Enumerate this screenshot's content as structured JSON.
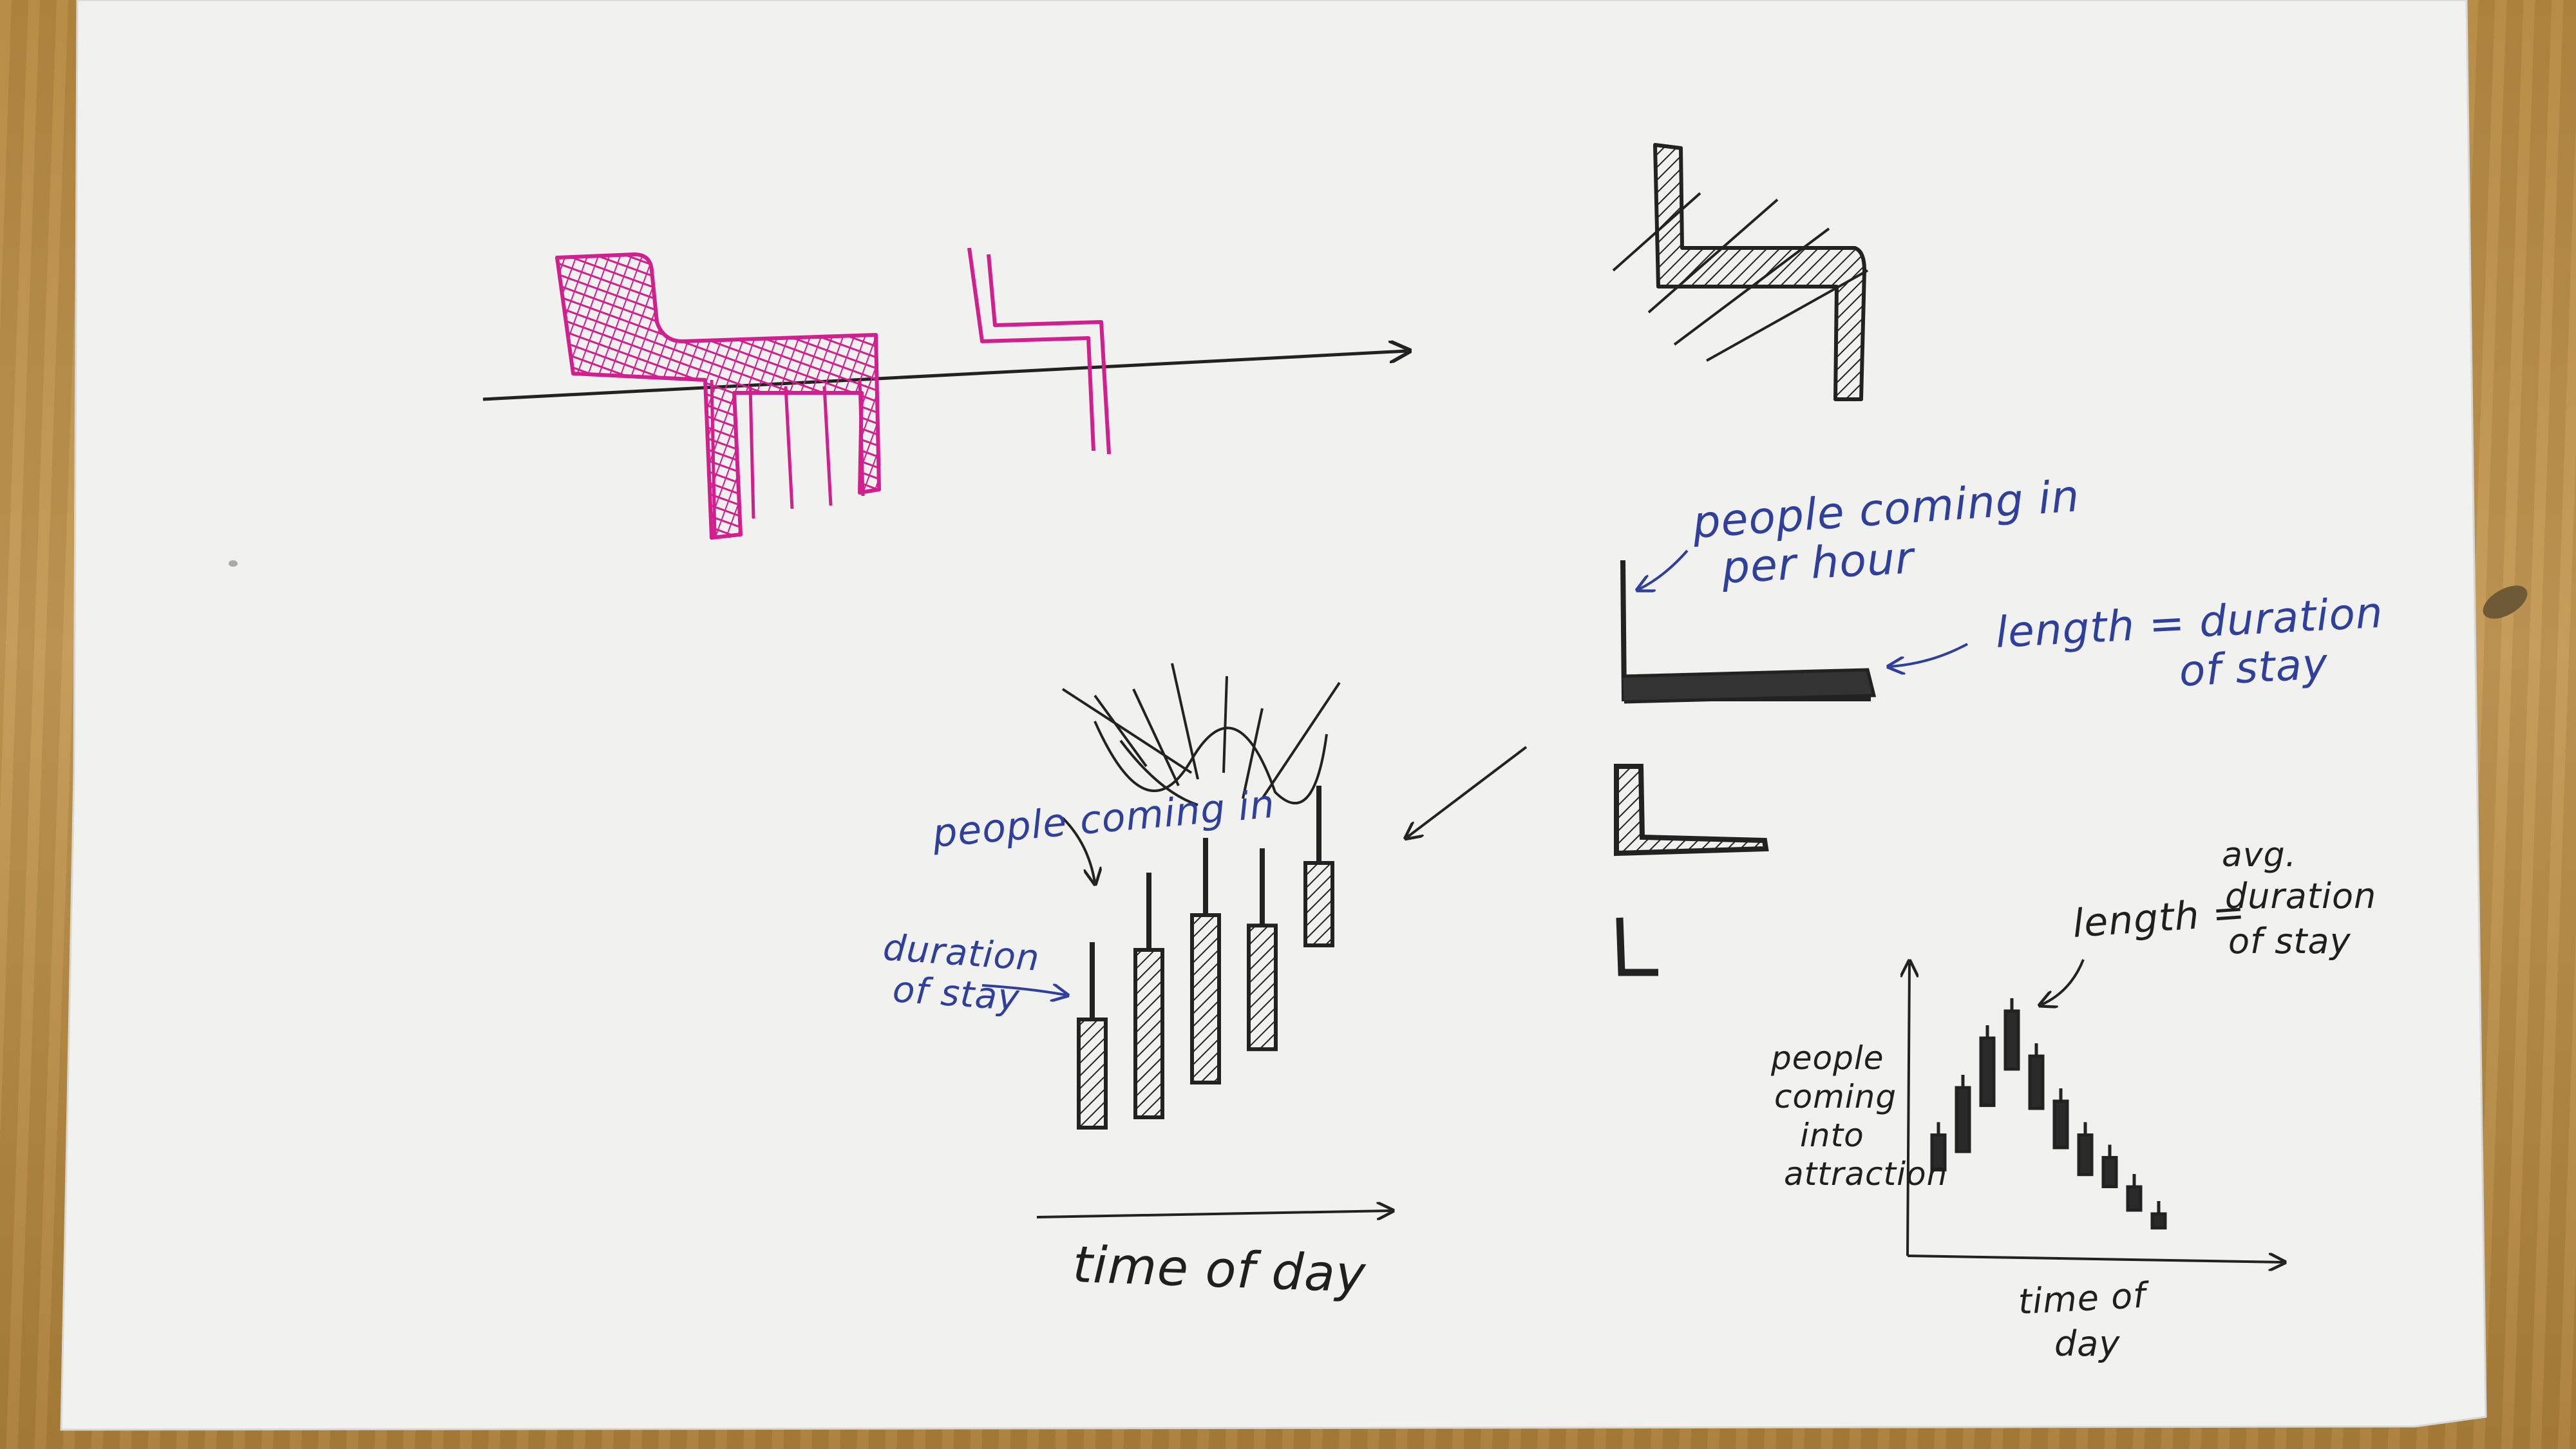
{
  "colors": {
    "paper": "#f2f2f0",
    "table": "#b98d45",
    "magenta_ink": "#d11f8e",
    "black_ink": "#222222",
    "blue_ink": "#2f3f9c"
  },
  "annotations": {
    "people_coming_in_per_hour_line1": "people coming in",
    "people_coming_in_per_hour_line2": "per hour",
    "length_duration_line1": "length = duration",
    "length_duration_line2": "of stay",
    "people_coming_in": "people coming in",
    "duration_of_stay_line1": "duration",
    "duration_of_stay_line2": "of stay",
    "time_of_day_center": "time of day",
    "length_avg_label": "length =",
    "avg_line1": "avg.",
    "avg_line2": "duration",
    "avg_line3": "of stay",
    "yaxis_line1": "people",
    "yaxis_line2": "coming",
    "yaxis_line3": "into",
    "yaxis_line4": "attraction",
    "time_of_day_right_line1": "time of",
    "time_of_day_right_line2": "day"
  },
  "sketch_charts": [
    {
      "id": "center-bars",
      "xlabel": "time of day",
      "bars": [
        {
          "people_in": 0.55,
          "duration": 0.42
        },
        {
          "people_in": 0.75,
          "duration": 0.65
        },
        {
          "people_in": 0.85,
          "duration": 0.65
        },
        {
          "people_in": 0.82,
          "duration": 0.48
        },
        {
          "people_in": 1.0,
          "duration": 0.32
        }
      ]
    },
    {
      "id": "right-bars",
      "xlabel": "time of day",
      "ylabel": "people coming into attraction",
      "bars": [
        {
          "people_in": 0.45,
          "duration": 0.3
        },
        {
          "people_in": 0.66,
          "duration": 0.55
        },
        {
          "people_in": 0.88,
          "duration": 0.58
        },
        {
          "people_in": 1.0,
          "duration": 0.5
        },
        {
          "people_in": 0.8,
          "duration": 0.45
        },
        {
          "people_in": 0.6,
          "duration": 0.4
        },
        {
          "people_in": 0.45,
          "duration": 0.34
        },
        {
          "people_in": 0.35,
          "duration": 0.25
        },
        {
          "people_in": 0.22,
          "duration": 0.2
        },
        {
          "people_in": 0.1,
          "duration": 0.12
        }
      ]
    }
  ]
}
